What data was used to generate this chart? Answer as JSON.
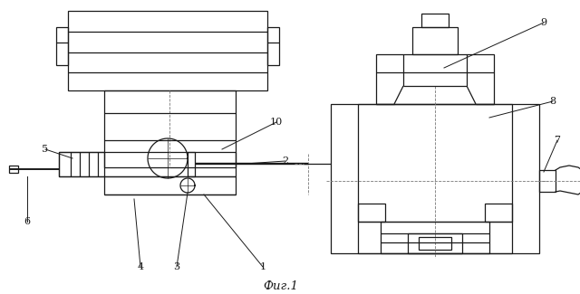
{
  "title": "Фиг.1",
  "bg_color": "#ffffff",
  "line_color": "#1a1a1a"
}
